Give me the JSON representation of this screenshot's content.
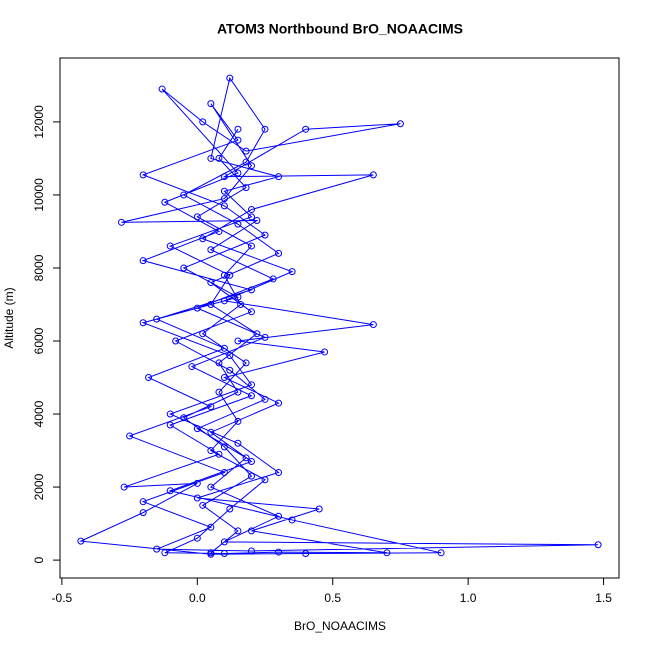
{
  "chart_data": {
    "type": "line",
    "title": "ATOM3 Northbound BrO_NOAACIMS",
    "x_label": "BrO_NOAACIMS",
    "y_label": "Altitude (m)",
    "color": "#0000ff",
    "x": [
      0.05,
      0.15,
      0.02,
      0.2,
      0.1,
      -0.05,
      0.15,
      0.08,
      0.22,
      0.05,
      0.12,
      -0.1,
      0.2,
      0.1,
      0.3,
      0.05,
      0.12,
      0.25,
      0.18,
      -0.05,
      0.15,
      0.3,
      0.05,
      0.2,
      -0.08,
      0.12,
      0.25,
      0.0,
      0.18,
      0.05,
      0.3,
      0.1,
      1.48,
      0.2,
      -0.15,
      0.05,
      -0.2,
      0.1,
      -0.25,
      0.05,
      -0.18,
      0.1,
      -0.15,
      0.2,
      -0.2,
      0.08,
      -0.12,
      0.15,
      -0.13,
      0.02,
      0.18,
      0.75,
      0.4,
      0.1,
      0.65,
      0.2,
      0.02,
      0.35,
      0.1,
      0.65,
      0.15,
      0.47,
      0.1,
      0.3,
      0.05,
      0.2,
      -0.1,
      0.35,
      0.9,
      0.4,
      0.05,
      -0.43,
      -0.2,
      0.0,
      -0.27,
      0.08,
      -0.1,
      0.2,
      -0.02,
      0.25,
      0.0,
      0.28,
      0.05,
      0.22,
      -0.28,
      0.1,
      0.2,
      0.05,
      0.15,
      -0.2,
      0.1,
      0.25,
      -0.05,
      0.15,
      -0.2,
      0.12,
      0.2,
      -0.1,
      0.15,
      0.3,
      0.0,
      0.45,
      0.2,
      0.7,
      0.3,
      0.1,
      -0.12,
      0.0,
      0.12,
      0.25,
      0.05,
      0.15,
      0.08,
      0.18,
      0.02,
      0.16,
      0.1,
      0.2,
      0.0,
      0.18,
      0.08,
      0.15
    ],
    "values": [
      200,
      800,
      1500,
      2300,
      3100,
      3900,
      4600,
      5400,
      6200,
      7000,
      7800,
      8600,
      9400,
      10100,
      10500,
      11000,
      13200,
      11800,
      10900,
      10000,
      9200,
      8400,
      7600,
      6800,
      6000,
      5200,
      4400,
      3600,
      2800,
      2000,
      1200,
      500,
      420,
      250,
      300,
      900,
      1600,
      2400,
      3400,
      4200,
      5000,
      5800,
      6600,
      7400,
      8200,
      9000,
      9800,
      10600,
      12900,
      12000,
      11200,
      11950,
      11800,
      10500,
      10550,
      9600,
      8800,
      7900,
      7100,
      6450,
      6000,
      5700,
      5000,
      4300,
      3500,
      2700,
      1900,
      1100,
      200,
      180,
      160,
      520,
      1300,
      2100,
      2000,
      2900,
      3700,
      4500,
      5300,
      6100,
      6900,
      7700,
      8500,
      9300,
      9250,
      9900,
      10800,
      12500,
      11500,
      10550,
      9700,
      8900,
      8000,
      7200,
      6500,
      5600,
      4800,
      4000,
      3200,
      2400,
      1700,
      1400,
      800,
      200,
      220,
      180,
      200,
      600,
      1400,
      2200,
      3000,
      3800,
      4600,
      5400,
      6200,
      7000,
      7800,
      8600,
      9400,
      10200,
      11000,
      11800
    ],
    "xlim": [
      -0.507,
      1.557
    ],
    "ylim": [
      -490,
      13750
    ],
    "xticks": [
      -0.5,
      {
        "value": 0,
        "label": "0.0"
      },
      0.5,
      {
        "value": 1,
        "label": "1.0"
      },
      1.5
    ],
    "yticks": [
      0,
      2000,
      4000,
      6000,
      8000,
      10000,
      12000
    ]
  }
}
